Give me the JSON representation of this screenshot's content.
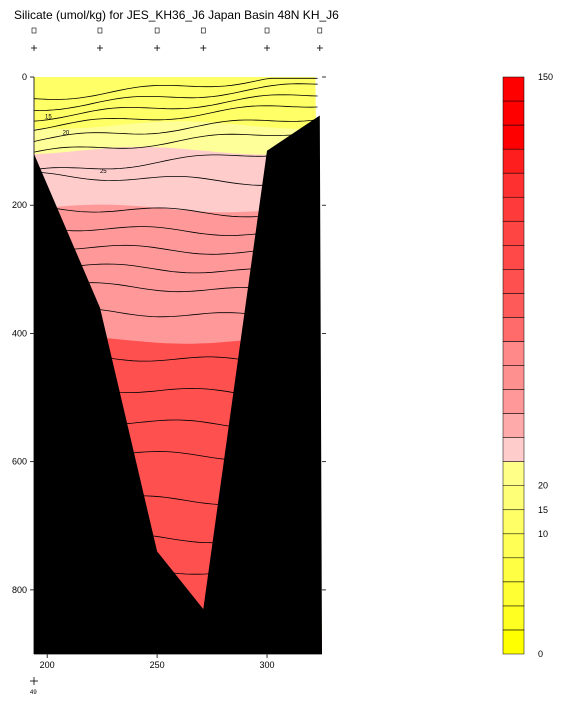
{
  "title": "Silicate (umol/kg) for JES_KH36_J6 Japan Basin 48N KH_J6",
  "chart_data": {
    "type": "heatmap",
    "title": "Silicate (umol/kg) for JES_KH36_J6 Japan Basin 48N KH_J6",
    "xlabel": "",
    "ylabel": "",
    "x_ticks": [
      "200",
      "250",
      "300"
    ],
    "y_ticks": [
      "0",
      "200",
      "400",
      "600",
      "800"
    ],
    "xlim": [
      194,
      325
    ],
    "ylim": [
      900,
      0
    ],
    "corner_label": "49",
    "station_x": [
      194,
      224,
      250,
      271,
      300,
      324
    ],
    "contour_labels": [
      {
        "text": "15",
        "x": 199,
        "depth": 65
      },
      {
        "text": "20",
        "x": 207,
        "depth": 90
      },
      {
        "text": "25",
        "x": 224,
        "depth": 150
      }
    ],
    "bands": [
      {
        "min": 0,
        "max": 15,
        "depth_top": 0,
        "color": "#ffff66"
      },
      {
        "min": 15,
        "max": 20,
        "depth_top": 75,
        "color": "#ffff99"
      },
      {
        "min": 20,
        "max": 40,
        "depth_top": 115,
        "color": "#ffcccc"
      },
      {
        "min": 40,
        "max": 80,
        "depth_top": 205,
        "color": "#ff9999"
      },
      {
        "min": 80,
        "max": 150,
        "depth_top": 410,
        "color": "#ff5050"
      }
    ],
    "contour_depths": [
      15,
      30,
      45,
      60,
      80,
      100,
      130,
      160,
      210,
      240,
      270,
      300,
      330,
      370,
      440,
      490,
      540,
      590,
      660,
      720,
      770
    ],
    "colorbar": {
      "min": 0,
      "max": 150,
      "labels": [
        {
          "text": "150",
          "value": 150
        },
        {
          "text": "20",
          "value": 20
        },
        {
          "text": "15",
          "value": 15
        },
        {
          "text": "10",
          "value": 10
        },
        {
          "text": "0",
          "value": 0
        }
      ],
      "segments": [
        "#ffff00",
        "#ffff22",
        "#ffff33",
        "#ffff44",
        "#ffff55",
        "#ffff66",
        "#ffff77",
        "#ffff88",
        "#ffcccc",
        "#ffaaaa",
        "#ff9999",
        "#ff9090",
        "#ff8888",
        "#ff6a6a",
        "#ff5a5a",
        "#ff5050",
        "#ff4848",
        "#ff4444",
        "#ff3a3a",
        "#ff3030",
        "#ff1e1e",
        "#ff0000",
        "#ff0000",
        "#ff0000"
      ]
    },
    "bathymetry": [
      [
        194,
        120
      ],
      [
        224,
        360
      ],
      [
        250,
        740
      ],
      [
        271,
        830
      ],
      [
        300,
        115
      ],
      [
        324,
        60
      ]
    ]
  }
}
